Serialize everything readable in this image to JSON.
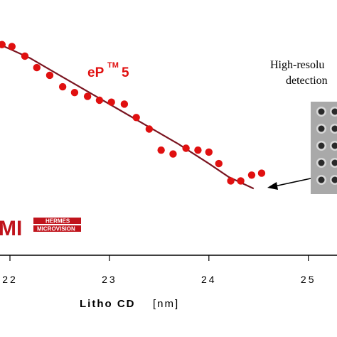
{
  "chart_data": {
    "type": "scatter",
    "xlabel": "Litho CD",
    "xunit": "[nm]",
    "ylabel": "",
    "xlim": [
      21.9,
      25.0
    ],
    "ylim": [
      0,
      1
    ],
    "xticks": [
      "22",
      "23",
      "24",
      "25"
    ],
    "x_tick_values": [
      22,
      23,
      24,
      25
    ],
    "series": [
      {
        "color": "#e01010",
        "points": [
          {
            "x": 21.92,
            "y": 0.99
          },
          {
            "x": 22.02,
            "y": 0.98
          },
          {
            "x": 22.15,
            "y": 0.93
          },
          {
            "x": 22.27,
            "y": 0.87
          },
          {
            "x": 22.4,
            "y": 0.83
          },
          {
            "x": 22.53,
            "y": 0.77
          },
          {
            "x": 22.65,
            "y": 0.74
          },
          {
            "x": 22.78,
            "y": 0.72
          },
          {
            "x": 22.9,
            "y": 0.7
          },
          {
            "x": 23.02,
            "y": 0.69
          },
          {
            "x": 23.15,
            "y": 0.68
          },
          {
            "x": 23.27,
            "y": 0.61
          },
          {
            "x": 23.4,
            "y": 0.55
          },
          {
            "x": 23.52,
            "y": 0.44
          },
          {
            "x": 23.64,
            "y": 0.42
          },
          {
            "x": 23.77,
            "y": 0.45
          },
          {
            "x": 23.89,
            "y": 0.44
          },
          {
            "x": 24.0,
            "y": 0.43
          },
          {
            "x": 24.1,
            "y": 0.37
          },
          {
            "x": 24.22,
            "y": 0.28
          },
          {
            "x": 24.32,
            "y": 0.28
          },
          {
            "x": 24.43,
            "y": 0.31
          },
          {
            "x": 24.53,
            "y": 0.32
          }
        ]
      }
    ],
    "fit_line": {
      "color": "#7a1420",
      "points": [
        {
          "x": 21.9,
          "y": 0.99
        },
        {
          "x": 22.2,
          "y": 0.92
        },
        {
          "x": 22.5,
          "y": 0.83
        },
        {
          "x": 22.8,
          "y": 0.74
        },
        {
          "x": 23.1,
          "y": 0.65
        },
        {
          "x": 23.4,
          "y": 0.56
        },
        {
          "x": 23.7,
          "y": 0.47
        },
        {
          "x": 24.0,
          "y": 0.37
        },
        {
          "x": 24.2,
          "y": 0.3
        },
        {
          "x": 24.45,
          "y": 0.24
        }
      ]
    }
  },
  "annotations": {
    "ep_label": "eP",
    "ep_tm": "TM",
    "ep_num": "5",
    "note_line1": "High-resolu",
    "note_line2": "detection"
  },
  "logo": {
    "big": "MI",
    "line1": "HERMES",
    "line2": "MICROVISION"
  },
  "colors": {
    "points": "#e01010",
    "fit": "#7a1420",
    "logo_red": "#c0141c",
    "arrow": "#000000"
  }
}
